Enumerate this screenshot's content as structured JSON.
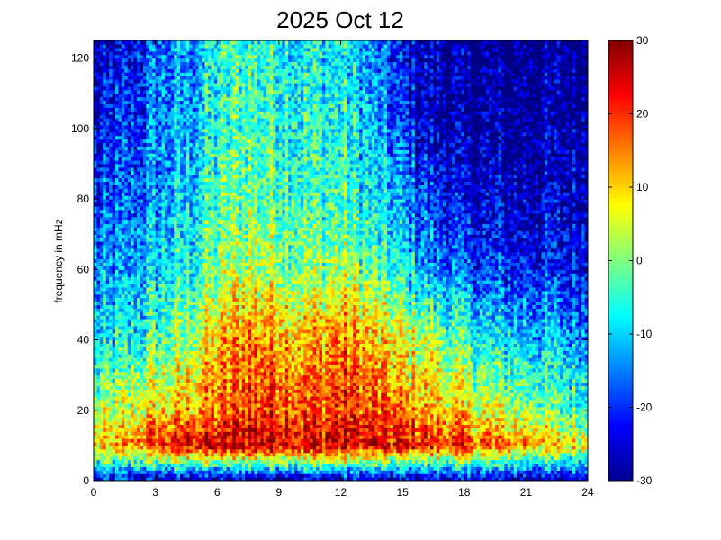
{
  "chart_data": {
    "type": "heatmap",
    "title": "2025 Oct 12",
    "xlabel": "",
    "ylabel": "frequency in mHz",
    "xlim": [
      0,
      24
    ],
    "ylim": [
      0,
      125
    ],
    "x_ticks": [
      0,
      3,
      6,
      9,
      12,
      15,
      18,
      21,
      24
    ],
    "x_tick_labels": [
      "0",
      "3",
      "6",
      "9",
      "12",
      "15",
      "18",
      "21",
      "24"
    ],
    "y_ticks": [
      0,
      20,
      40,
      60,
      80,
      100,
      120
    ],
    "y_tick_labels": [
      "0",
      "20",
      "40",
      "60",
      "80",
      "100",
      "120"
    ],
    "colorbar": {
      "range": [
        -30,
        30
      ],
      "ticks": [
        -30,
        -20,
        -10,
        0,
        10,
        20,
        30
      ],
      "tick_labels": [
        "-30",
        "-20",
        "-10",
        "0",
        "10",
        "20",
        "30"
      ],
      "colormap": "jet"
    },
    "grid": false,
    "value_grid": {
      "x_hours": [
        0,
        1.5,
        3,
        4.5,
        6,
        7.5,
        9,
        10.5,
        12,
        13.5,
        15,
        16.5,
        18,
        19.5,
        21,
        22.5,
        24
      ],
      "y_mhz": [
        0,
        10,
        20,
        40,
        60,
        80,
        100,
        125
      ],
      "values": [
        [
          -22,
          -25,
          -28,
          -28,
          -28,
          -28,
          -28,
          -28,
          -28,
          -28,
          -28,
          -28,
          -28,
          -28,
          -28,
          -28,
          -22
        ],
        [
          8,
          12,
          20,
          24,
          26,
          28,
          26,
          25,
          26,
          24,
          22,
          22,
          20,
          16,
          14,
          10,
          6
        ],
        [
          0,
          4,
          8,
          12,
          16,
          20,
          20,
          18,
          20,
          18,
          14,
          12,
          8,
          4,
          2,
          -2,
          -4
        ],
        [
          -10,
          -8,
          -4,
          2,
          10,
          16,
          14,
          12,
          16,
          12,
          6,
          2,
          -4,
          -8,
          -10,
          -12,
          -14
        ],
        [
          -16,
          -14,
          -10,
          -6,
          0,
          4,
          2,
          0,
          2,
          -2,
          -8,
          -14,
          -18,
          -20,
          -20,
          -22,
          -22
        ],
        [
          -20,
          -18,
          -14,
          -10,
          -4,
          0,
          -2,
          -4,
          -4,
          -8,
          -14,
          -20,
          -24,
          -26,
          -26,
          -26,
          -26
        ],
        [
          -24,
          -20,
          -16,
          -12,
          -6,
          -2,
          -4,
          -6,
          -6,
          -12,
          -20,
          -26,
          -28,
          -28,
          -28,
          -28,
          -28
        ],
        [
          -28,
          -24,
          -18,
          -14,
          -8,
          -4,
          -6,
          -8,
          -8,
          -14,
          -24,
          -28,
          -30,
          -30,
          -30,
          -30,
          -30
        ]
      ]
    }
  }
}
